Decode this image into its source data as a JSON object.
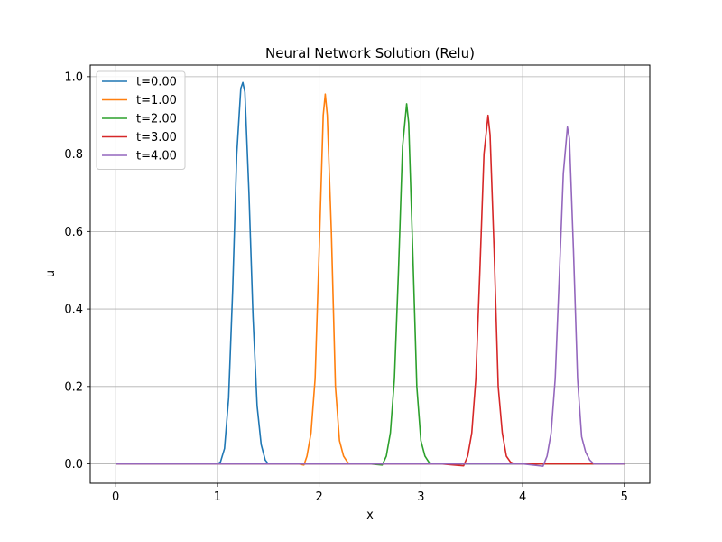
{
  "chart_data": {
    "type": "line",
    "title": "Neural Network Solution (Relu)",
    "xlabel": "x",
    "ylabel": "u",
    "xlim": [
      -0.25,
      5.25
    ],
    "ylim": [
      -0.05,
      1.03
    ],
    "xticks": [
      0,
      1,
      2,
      3,
      4,
      5
    ],
    "xtick_labels": [
      "0",
      "1",
      "2",
      "3",
      "4",
      "5"
    ],
    "yticks": [
      0.0,
      0.2,
      0.4,
      0.6,
      0.8,
      1.0
    ],
    "ytick_labels": [
      "0.0",
      "0.2",
      "0.4",
      "0.6",
      "0.8",
      "1.0"
    ],
    "grid": true,
    "legend_position": "upper-left",
    "series": [
      {
        "name": "t=0.00",
        "color": "#1f77b4",
        "x": [
          0,
          1.0,
          1.03,
          1.07,
          1.11,
          1.15,
          1.19,
          1.23,
          1.25,
          1.27,
          1.31,
          1.35,
          1.39,
          1.43,
          1.47,
          1.5,
          5.0
        ],
        "y": [
          0,
          0,
          0.005,
          0.04,
          0.17,
          0.45,
          0.8,
          0.97,
          0.985,
          0.96,
          0.7,
          0.38,
          0.15,
          0.05,
          0.01,
          0,
          0
        ]
      },
      {
        "name": "t=1.00",
        "color": "#ff7f0e",
        "x": [
          0,
          1.8,
          1.85,
          1.88,
          1.92,
          1.96,
          2.0,
          2.04,
          2.06,
          2.08,
          2.12,
          2.16,
          2.2,
          2.24,
          2.28,
          2.3,
          5.0
        ],
        "y": [
          0,
          0,
          -0.003,
          0.02,
          0.08,
          0.22,
          0.55,
          0.9,
          0.955,
          0.9,
          0.6,
          0.2,
          0.06,
          0.02,
          0.004,
          0,
          0
        ]
      },
      {
        "name": "t=2.00",
        "color": "#2ca02c",
        "x": [
          0,
          2.5,
          2.62,
          2.66,
          2.7,
          2.74,
          2.78,
          2.82,
          2.86,
          2.88,
          2.92,
          2.96,
          3.0,
          3.04,
          3.08,
          3.12,
          5.0
        ],
        "y": [
          0,
          0,
          -0.003,
          0.02,
          0.08,
          0.22,
          0.5,
          0.82,
          0.93,
          0.88,
          0.55,
          0.2,
          0.06,
          0.02,
          0.004,
          0,
          0
        ]
      },
      {
        "name": "t=3.00",
        "color": "#d62728",
        "x": [
          0,
          3.2,
          3.42,
          3.46,
          3.5,
          3.54,
          3.58,
          3.62,
          3.66,
          3.68,
          3.72,
          3.76,
          3.8,
          3.84,
          3.88,
          3.92,
          5.0
        ],
        "y": [
          0,
          0,
          -0.005,
          0.02,
          0.08,
          0.22,
          0.5,
          0.8,
          0.9,
          0.85,
          0.55,
          0.2,
          0.08,
          0.02,
          0.005,
          0,
          0
        ]
      },
      {
        "name": "t=4.00",
        "color": "#9467bd",
        "x": [
          0,
          4.0,
          4.2,
          4.24,
          4.28,
          4.32,
          4.36,
          4.4,
          4.44,
          4.46,
          4.5,
          4.54,
          4.58,
          4.62,
          4.66,
          4.7,
          5.0
        ],
        "y": [
          0,
          0,
          -0.006,
          0.02,
          0.08,
          0.22,
          0.48,
          0.75,
          0.87,
          0.84,
          0.55,
          0.22,
          0.07,
          0.03,
          0.01,
          0,
          0
        ]
      }
    ]
  }
}
